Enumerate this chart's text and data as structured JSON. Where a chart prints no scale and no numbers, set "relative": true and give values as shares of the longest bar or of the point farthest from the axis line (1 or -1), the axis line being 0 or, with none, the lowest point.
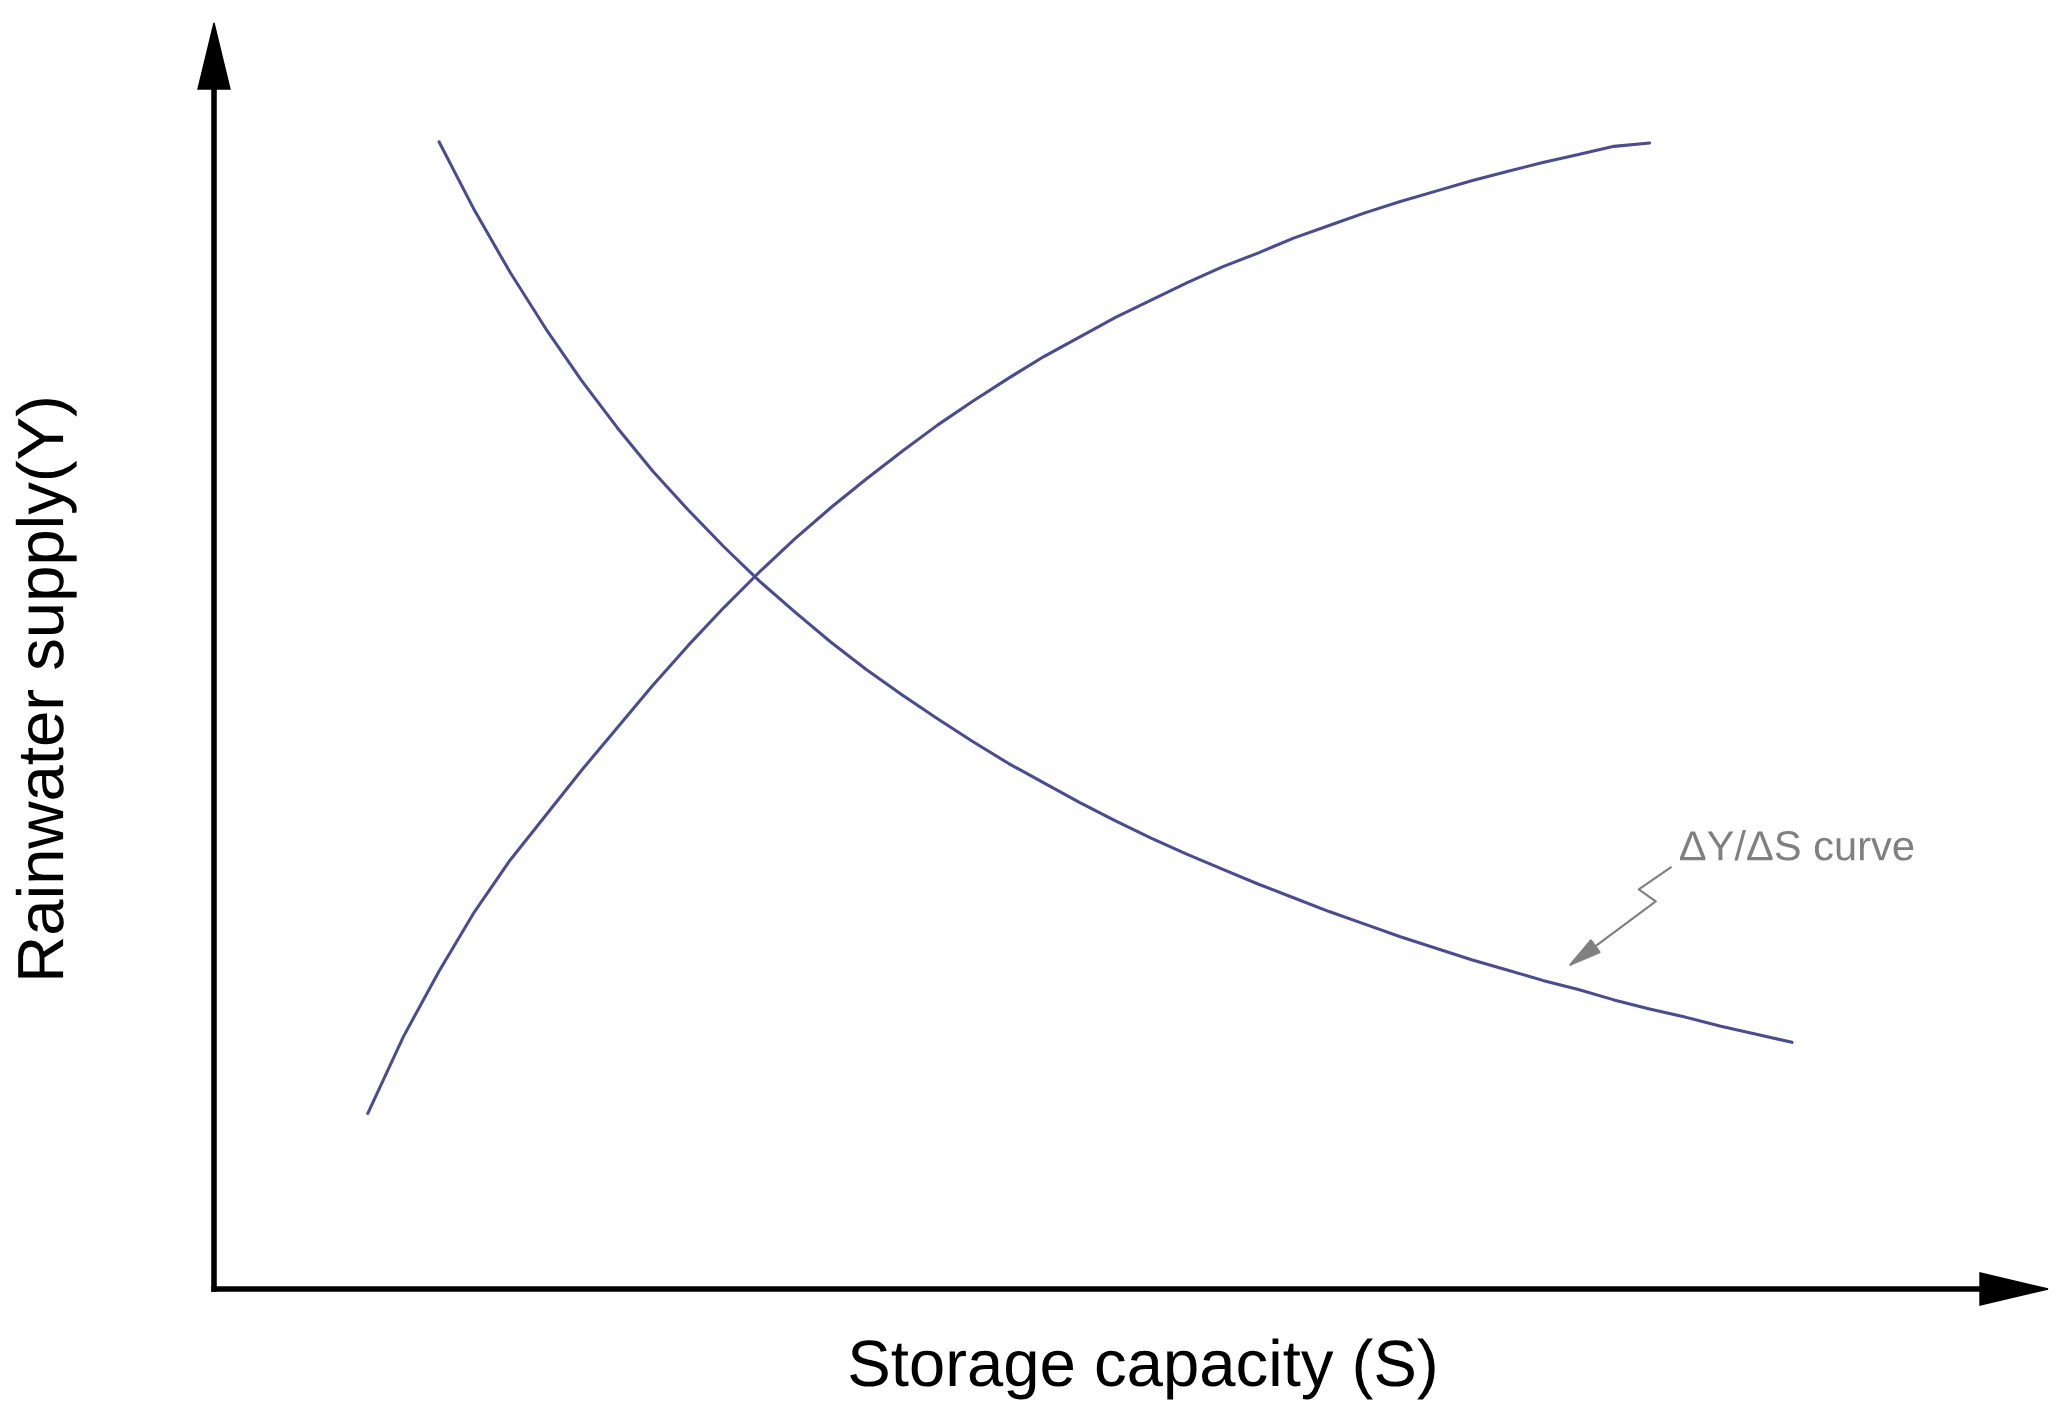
{
  "chart_data": {
    "type": "line",
    "relative": true,
    "xlabel": "Storage capacity (S)",
    "ylabel": "Rainwater supply(Y)",
    "categories": [
      null,
      null,
      null,
      null,
      null,
      null,
      null,
      null,
      null,
      null,
      null,
      null,
      null,
      null,
      null,
      null,
      null,
      null,
      null,
      null,
      null,
      null,
      null,
      null,
      null,
      null,
      null,
      null,
      null,
      null,
      null,
      null,
      null,
      null,
      null,
      null,
      null,
      null,
      null,
      null,
      null
    ],
    "series": [
      {
        "color": "#4b4b8f",
        "values": [
          0.153,
          0.22,
          0.277,
          0.329,
          0.374,
          0.413,
          0.452,
          0.489,
          0.526,
          0.561,
          0.594,
          0.625,
          0.654,
          0.681,
          0.706,
          0.73,
          0.753,
          0.774,
          0.794,
          0.813,
          0.83,
          0.847,
          0.862,
          0.877,
          0.891,
          0.903,
          0.916,
          0.927,
          0.938,
          0.948,
          0.957,
          0.966,
          0.974,
          0.982,
          0.989,
          0.996,
          0.999,
          null,
          null,
          null,
          null
        ]
      },
      {
        "color": "#4b4b8f",
        "values": [
          null,
          null,
          1.0,
          0.94,
          0.886,
          0.837,
          0.792,
          0.751,
          0.713,
          0.679,
          0.647,
          0.617,
          0.59,
          0.564,
          0.54,
          0.518,
          0.497,
          0.477,
          0.458,
          0.441,
          0.424,
          0.408,
          0.393,
          0.379,
          0.366,
          0.353,
          0.341,
          0.329,
          0.318,
          0.307,
          0.297,
          0.287,
          0.278,
          0.269,
          0.261,
          0.252,
          0.244,
          0.237,
          0.229,
          0.222,
          0.215
        ]
      }
    ],
    "annotations": [
      "ΔY/ΔS curve"
    ]
  }
}
